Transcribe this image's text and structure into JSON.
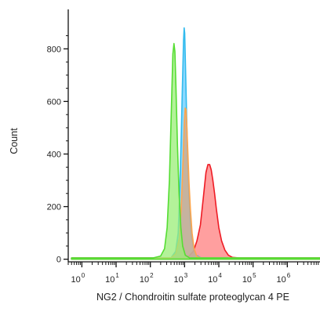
{
  "chart_data": {
    "type": "area",
    "title": "",
    "xlabel": "NG2 / Chondroitin sulfate proteoglycan 4 PE",
    "ylabel": "Count",
    "x_scale": "log",
    "xlim": [
      0.4,
      9000000
    ],
    "ylim": [
      -10,
      950
    ],
    "x_ticks": [
      {
        "value": 1,
        "base": "10",
        "exp": "0"
      },
      {
        "value": 10,
        "base": "10",
        "exp": "1"
      },
      {
        "value": 100,
        "base": "10",
        "exp": "2"
      },
      {
        "value": 1000,
        "base": "10",
        "exp": "3"
      },
      {
        "value": 10000,
        "base": "10",
        "exp": "4"
      },
      {
        "value": 100000,
        "base": "10",
        "exp": "5"
      },
      {
        "value": 1000000,
        "base": "10",
        "exp": "6"
      }
    ],
    "y_ticks": [
      {
        "value": 0,
        "label": "0"
      },
      {
        "value": 200,
        "label": "200"
      },
      {
        "value": 400,
        "label": "400"
      },
      {
        "value": 600,
        "label": "600"
      },
      {
        "value": 800,
        "label": "800"
      }
    ],
    "grid": false,
    "legend": "none",
    "series": [
      {
        "color": "#ee1c25",
        "fill": "#ff7f7f",
        "points": [
          [
            0.5,
            5
          ],
          [
            200,
            5
          ],
          [
            800,
            5
          ],
          [
            1300,
            10
          ],
          [
            1800,
            30
          ],
          [
            2300,
            70
          ],
          [
            2900,
            130
          ],
          [
            3500,
            230
          ],
          [
            4200,
            330
          ],
          [
            4800,
            360
          ],
          [
            5400,
            360
          ],
          [
            6000,
            340
          ],
          [
            6700,
            300
          ],
          [
            7500,
            250
          ],
          [
            8500,
            190
          ],
          [
            10000,
            120
          ],
          [
            12000,
            70
          ],
          [
            15000,
            35
          ],
          [
            19000,
            15
          ],
          [
            25000,
            7
          ],
          [
            40000,
            5
          ],
          [
            9000000,
            5
          ]
        ]
      },
      {
        "color": "#33bbee",
        "fill": "#66ccff",
        "points": [
          [
            0.5,
            5
          ],
          [
            200,
            5
          ],
          [
            400,
            5
          ],
          [
            550,
            30
          ],
          [
            650,
            100
          ],
          [
            720,
            250
          ],
          [
            790,
            450
          ],
          [
            860,
            650
          ],
          [
            930,
            830
          ],
          [
            970,
            880
          ],
          [
            1010,
            860
          ],
          [
            1070,
            720
          ],
          [
            1150,
            540
          ],
          [
            1230,
            380
          ],
          [
            1330,
            260
          ],
          [
            1450,
            160
          ],
          [
            1600,
            90
          ],
          [
            1850,
            40
          ],
          [
            2200,
            15
          ],
          [
            3000,
            5
          ],
          [
            9000000,
            5
          ]
        ]
      },
      {
        "color": "#ffa64d",
        "fill": "#d9a67f",
        "points": [
          [
            0.5,
            5
          ],
          [
            250,
            5
          ],
          [
            400,
            5
          ],
          [
            550,
            20
          ],
          [
            700,
            80
          ],
          [
            800,
            200
          ],
          [
            900,
            380
          ],
          [
            980,
            520
          ],
          [
            1040,
            575
          ],
          [
            1100,
            570
          ],
          [
            1170,
            500
          ],
          [
            1250,
            400
          ],
          [
            1350,
            290
          ],
          [
            1480,
            190
          ],
          [
            1650,
            100
          ],
          [
            1900,
            40
          ],
          [
            2300,
            10
          ],
          [
            3000,
            5
          ],
          [
            9000000,
            5
          ]
        ]
      },
      {
        "color": "#55dd33",
        "fill": "#99ee77",
        "points": [
          [
            0.5,
            5
          ],
          [
            120,
            5
          ],
          [
            200,
            12
          ],
          [
            260,
            40
          ],
          [
            310,
            120
          ],
          [
            360,
            300
          ],
          [
            410,
            560
          ],
          [
            455,
            780
          ],
          [
            490,
            820
          ],
          [
            520,
            790
          ],
          [
            560,
            650
          ],
          [
            620,
            430
          ],
          [
            690,
            250
          ],
          [
            780,
            120
          ],
          [
            880,
            50
          ],
          [
            1050,
            15
          ],
          [
            1400,
            5
          ],
          [
            9000000,
            5
          ]
        ]
      }
    ]
  }
}
